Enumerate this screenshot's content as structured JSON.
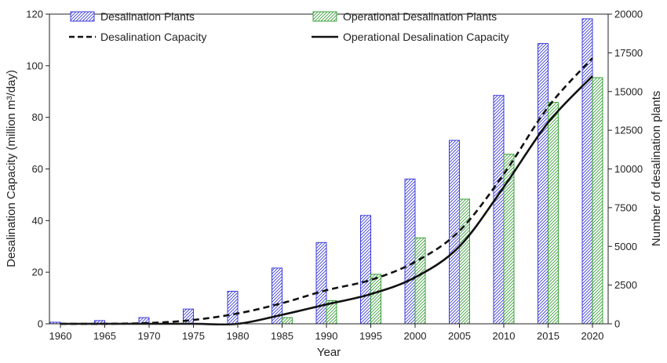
{
  "chart_data": {
    "type": "bar",
    "categories": [
      "1960",
      "1965",
      "1970",
      "1975",
      "1980",
      "1985",
      "1990",
      "1995",
      "2000",
      "2005",
      "2010",
      "2015",
      "2020"
    ],
    "bar_series": [
      {
        "name": "Desalination Plants",
        "axis": "right",
        "color": "#3c3cdc",
        "values": [
          100,
          210,
          400,
          950,
          2100,
          3600,
          5250,
          7000,
          9350,
          11850,
          14750,
          18100,
          19700
        ]
      },
      {
        "name": "Operational Desalination Plants",
        "axis": "right",
        "color": "#3ca03c",
        "values": [
          0,
          0,
          0,
          0,
          0,
          400,
          1500,
          3200,
          5550,
          8050,
          10950,
          14300,
          15900
        ]
      }
    ],
    "line_series": [
      {
        "name": "Desalination Capacity",
        "axis": "left",
        "dashed": true,
        "color": "#111111",
        "x": [
          1960,
          1965,
          1970,
          1975,
          1980,
          1985,
          1990,
          1995,
          2000,
          2005,
          2010,
          2015,
          2020
        ],
        "y": [
          0,
          0,
          0.3,
          1.5,
          4,
          8,
          13,
          17,
          24,
          36,
          58,
          84,
          103
        ]
      },
      {
        "name": "Operational Desalination Capacity",
        "axis": "left",
        "dashed": false,
        "color": "#111111",
        "x": [
          1960,
          1965,
          1970,
          1975,
          1980,
          1985,
          1990,
          1995,
          2000,
          2005,
          2010,
          2015,
          2020
        ],
        "y": [
          0,
          0,
          0,
          0,
          0,
          3.5,
          7.5,
          11.5,
          18,
          30,
          53,
          78,
          96
        ]
      }
    ],
    "xlabel": "Year",
    "ylabel_left": "Desalination Capacity (million m³/day)",
    "ylabel_right": "Number of desalination plants",
    "ylim_left": [
      0,
      120
    ],
    "ylim_right": [
      0,
      20000
    ],
    "yticks_left": [
      "0",
      "20",
      "40",
      "60",
      "80",
      "100",
      "120"
    ],
    "yticks_right": [
      "0",
      "2500",
      "5000",
      "7500",
      "10000",
      "12500",
      "15000",
      "17500",
      "20000"
    ],
    "grid": false,
    "legend_position": "top"
  }
}
